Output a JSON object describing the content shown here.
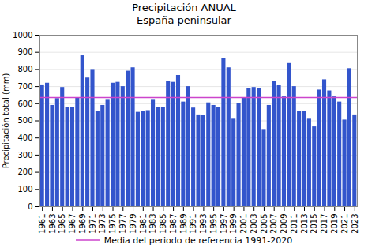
{
  "chart_data": {
    "type": "bar",
    "title": "Precipitación ANUAL",
    "subtitle": "España peninsular",
    "ylabel": "Precipitación total (mm)",
    "x": [
      1961,
      1962,
      1963,
      1964,
      1965,
      1966,
      1967,
      1968,
      1969,
      1970,
      1971,
      1972,
      1973,
      1974,
      1975,
      1976,
      1977,
      1978,
      1979,
      1980,
      1981,
      1982,
      1983,
      1984,
      1985,
      1986,
      1987,
      1988,
      1989,
      1990,
      1991,
      1992,
      1993,
      1994,
      1995,
      1996,
      1997,
      1998,
      1999,
      2000,
      2001,
      2002,
      2003,
      2004,
      2005,
      2006,
      2007,
      2008,
      2009,
      2010,
      2011,
      2012,
      2013,
      2014,
      2015,
      2016,
      2017,
      2018,
      2019,
      2020,
      2021,
      2022,
      2023
    ],
    "values": [
      710,
      720,
      590,
      630,
      695,
      580,
      580,
      635,
      880,
      750,
      800,
      555,
      590,
      625,
      720,
      725,
      700,
      790,
      810,
      550,
      555,
      560,
      625,
      580,
      580,
      730,
      725,
      765,
      610,
      700,
      575,
      535,
      530,
      605,
      590,
      580,
      865,
      810,
      510,
      600,
      635,
      690,
      695,
      690,
      450,
      590,
      730,
      705,
      640,
      835,
      700,
      555,
      555,
      510,
      465,
      680,
      740,
      675,
      640,
      610,
      505,
      805,
      535
    ],
    "color": "#3355cc",
    "xlim": [
      1960.5,
      2023.5
    ],
    "xticks": [
      1961,
      1963,
      1965,
      1967,
      1969,
      1971,
      1973,
      1975,
      1977,
      1979,
      1981,
      1983,
      1985,
      1987,
      1989,
      1991,
      1993,
      1995,
      1997,
      1999,
      2001,
      2003,
      2005,
      2007,
      2009,
      2011,
      2013,
      2015,
      2017,
      2019,
      2021,
      2023
    ],
    "ylim": [
      0,
      1000
    ],
    "yticks": [
      0,
      100,
      200,
      300,
      400,
      500,
      600,
      700,
      800,
      900,
      1000
    ],
    "grid": true,
    "legend": "bottom",
    "reference_line": {
      "value": 636,
      "label": "Media del periodo de referencia 1991-2020",
      "color": "#cc44cc"
    }
  }
}
